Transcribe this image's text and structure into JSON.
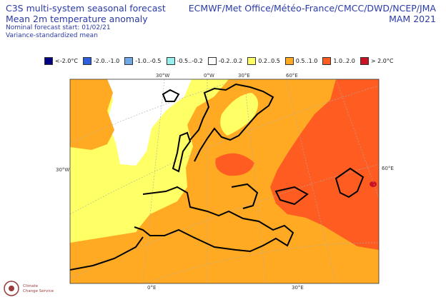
{
  "header": {
    "title_line1": "C3S multi-system seasonal forecast",
    "title_line2": "Mean 2m temperature anomaly",
    "nominal_start": "Nominal forecast start: 01/02/21",
    "variance_note": "Variance-standardized mean",
    "centres": "ECMWF/Met Office/Météo-France/CMCC/DWD/NCEP/JMA",
    "season": "MAM 2021"
  },
  "legend": [
    {
      "label": "<-2.0°C",
      "color": "#000080"
    },
    {
      "label": "-2.0..-1.0",
      "color": "#2e5ee0"
    },
    {
      "label": "-1.0..-0.5",
      "color": "#6fa8e6"
    },
    {
      "label": "-0.5..-0.2",
      "color": "#99eeee"
    },
    {
      "label": "-0.2..0.2",
      "color": "#ffffff"
    },
    {
      "label": "0.2..0.5",
      "color": "#ffff66"
    },
    {
      "label": "0.5..1.0",
      "color": "#ffaa22"
    },
    {
      "label": "1.0..2.0",
      "color": "#ff5c22"
    },
    {
      "label": "> 2.0°C",
      "color": "#cc1122"
    }
  ],
  "graticule_labels": {
    "top": [
      "30°W",
      "0°W",
      "30°E",
      "60°E"
    ],
    "bottom": [
      "0°E",
      "30°E"
    ],
    "left": "30°W",
    "right": "60°E"
  },
  "logo": {
    "line1": "Climate",
    "line2": "Change Service"
  }
}
